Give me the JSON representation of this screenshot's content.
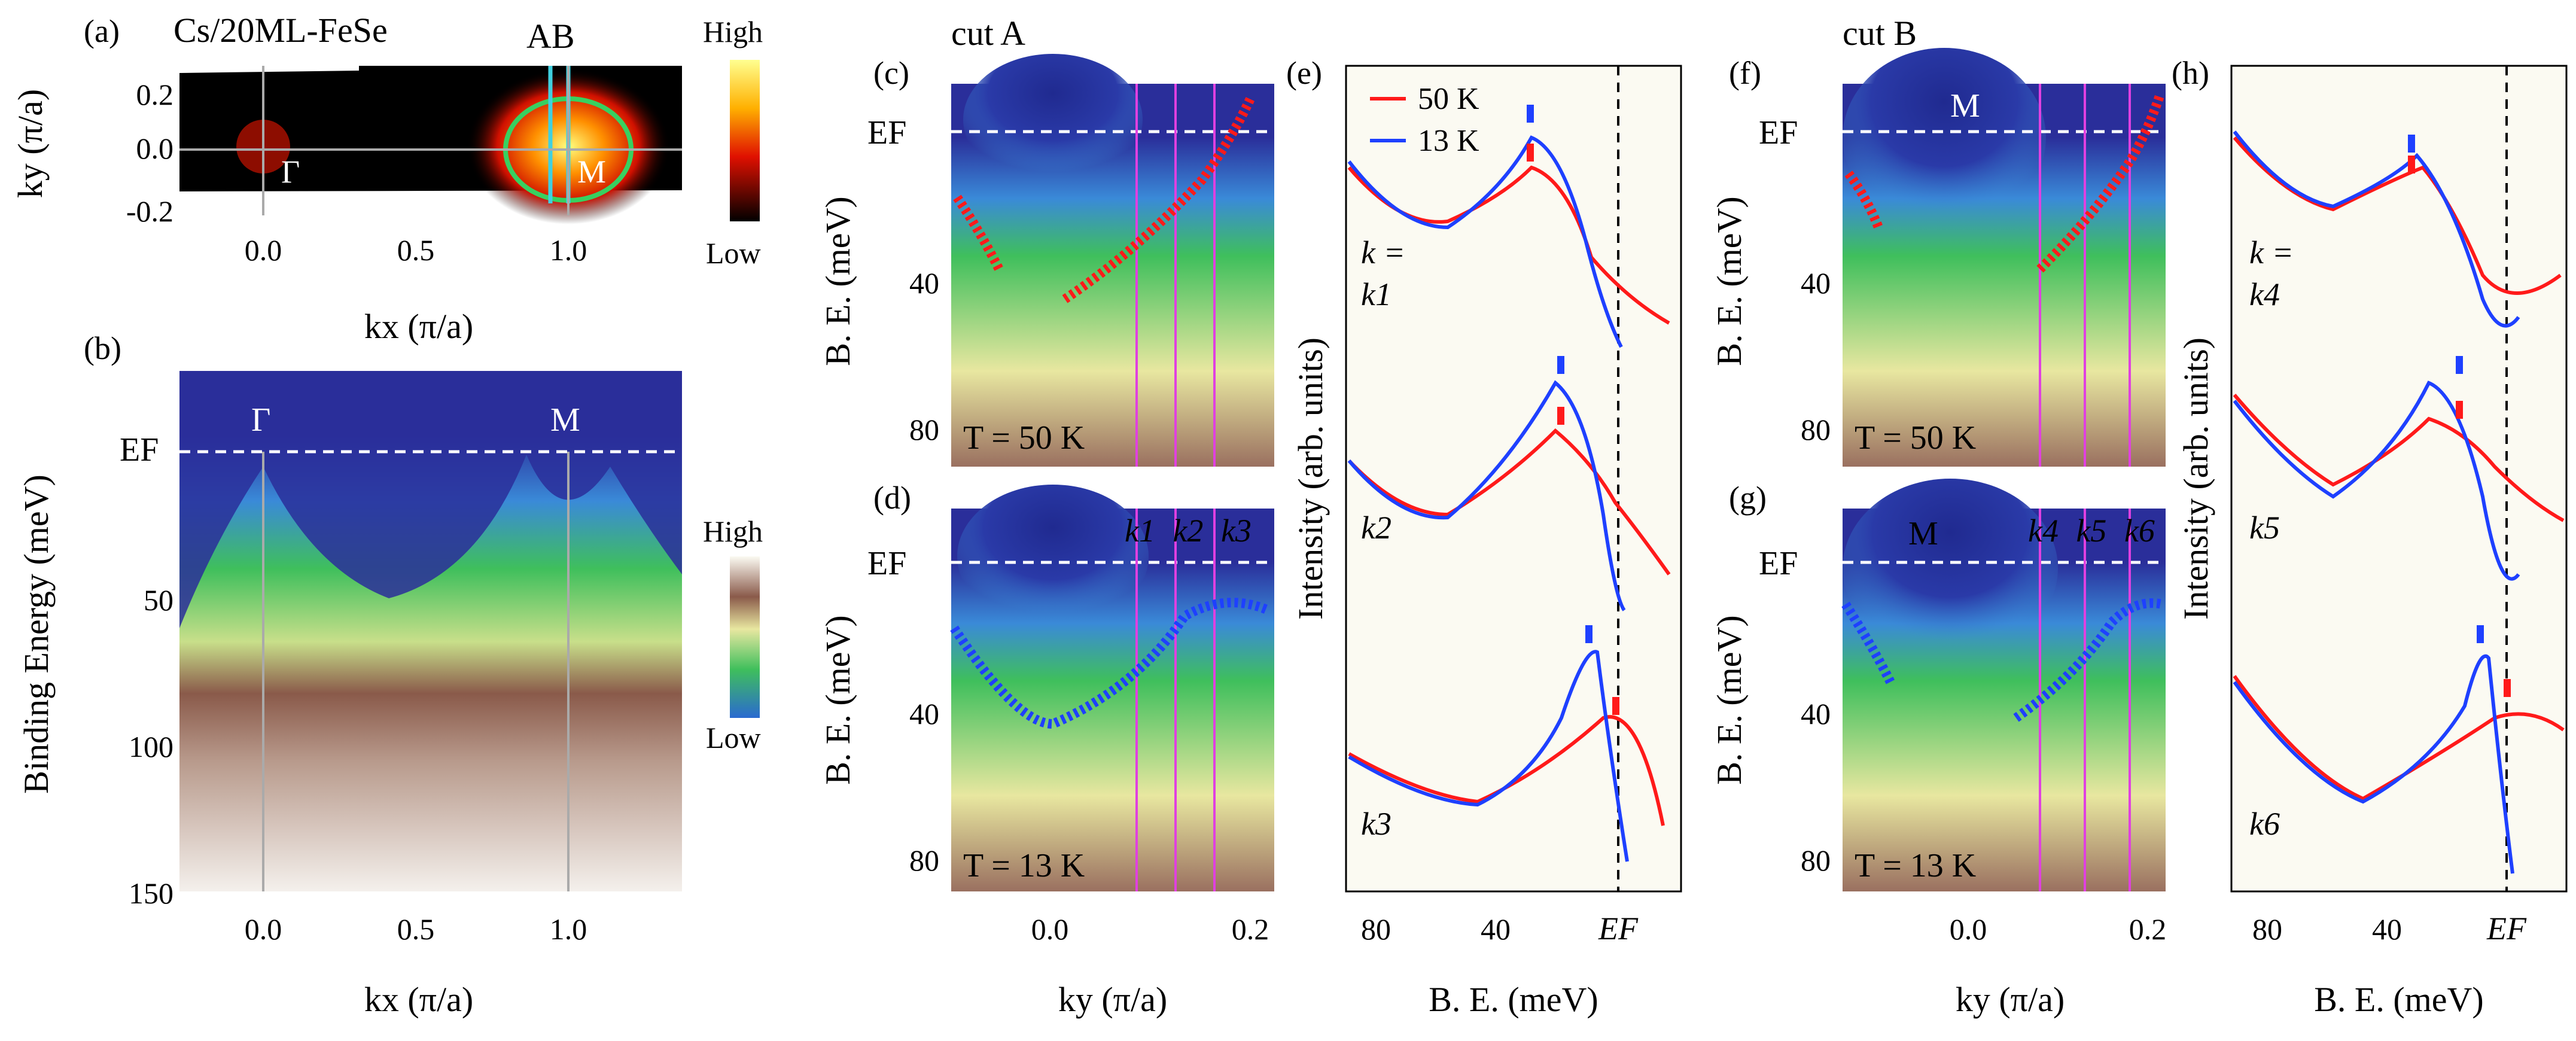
{
  "colors": {
    "dark_blue": "#2a2e9a",
    "green": "#3fbf5c",
    "yellow": "#e8e7a0",
    "brown": "#7a4c3c",
    "light": "#fbfaf2",
    "red_curve": "#ff1a1a",
    "blue_curve": "#1e40ff",
    "magenta_line": "#e040e0",
    "cyan_line": "#40d0e0",
    "circle_green": "#38d060"
  },
  "panels": {
    "a": {
      "label": "(a)",
      "title": "Cs/20ML-FeSe",
      "cut_labels": "AB",
      "gamma": "Γ",
      "m": "M",
      "ylabel": "ky (π/a)",
      "xlabel": "kx (π/a)",
      "colorbar_high": "High",
      "colorbar_low": "Low",
      "xticks": [
        "0.0",
        "0.5",
        "1.0"
      ],
      "yticks": [
        "0.2",
        "0.0",
        "-0.2"
      ]
    },
    "b": {
      "label": "(b)",
      "ylabel": "Binding Energy (meV)",
      "xlabel": "kx (π/a)",
      "ef": "EF",
      "gamma": "Γ",
      "m": "M",
      "colorbar_high": "High",
      "colorbar_low": "Low",
      "yticks": [
        "50",
        "100",
        "150"
      ],
      "xticks": [
        "0.0",
        "0.5",
        "1.0"
      ]
    },
    "c": {
      "label": "(c)",
      "title": "cut A",
      "ylabel": "B. E. (meV)",
      "ef": "EF",
      "temp": "T = 50 K",
      "yticks": [
        "40",
        "80"
      ]
    },
    "d": {
      "label": "(d)",
      "ylabel": "B. E. (meV)",
      "ef": "EF",
      "temp": "T = 13 K",
      "k_labels": [
        "k1",
        "k2",
        "k3"
      ],
      "xlabel": "ky (π/a)",
      "yticks": [
        "40",
        "80"
      ],
      "xticks": [
        "0.0",
        "0.2"
      ]
    },
    "e": {
      "label": "(e)",
      "legend": [
        "50 K",
        "13 K"
      ],
      "ylabel": "Intensity (arb. units)",
      "xlabel": "B. E. (meV)",
      "k_eq": "k =",
      "curve_labels": [
        "k1",
        "k2",
        "k3"
      ],
      "xticks": [
        "80",
        "40",
        "EF"
      ]
    },
    "f": {
      "label": "(f)",
      "title": "cut B",
      "ylabel": "B. E. (meV)",
      "ef": "EF",
      "m": "M",
      "temp": "T = 50 K",
      "yticks": [
        "40",
        "80"
      ]
    },
    "g": {
      "label": "(g)",
      "ylabel": "B. E. (meV)",
      "ef": "EF",
      "m": "M",
      "temp": "T = 13 K",
      "k_labels": [
        "k4",
        "k5",
        "k6"
      ],
      "xlabel": "ky (π/a)",
      "yticks": [
        "40",
        "80"
      ],
      "xticks": [
        "0.0",
        "0.2"
      ]
    },
    "h": {
      "label": "(h)",
      "ylabel": "Intensity (arb. units)",
      "xlabel": "B. E. (meV)",
      "k_eq": "k =",
      "curve_labels": [
        "k4",
        "k5",
        "k6"
      ],
      "xticks": [
        "80",
        "40",
        "EF"
      ]
    }
  }
}
